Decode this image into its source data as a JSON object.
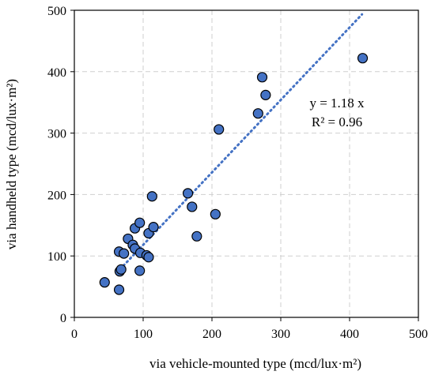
{
  "chart_data": {
    "type": "scatter",
    "xlabel": "via vehicle-mounted type (mcd/lux·m²)",
    "ylabel": "via handheld type (mcd/lux·m²)",
    "xlim": [
      0,
      500
    ],
    "ylim": [
      0,
      500
    ],
    "xticks": [
      0,
      100,
      200,
      300,
      400,
      500
    ],
    "yticks": [
      0,
      100,
      200,
      300,
      400,
      500
    ],
    "grid": true,
    "point_color": "#4472c4",
    "trend_color": "#4472c4",
    "trendline": {
      "slope": 1.18,
      "x_range": [
        62,
        418
      ],
      "equation": "y = 1.18 x",
      "r_squared": "R² = 0.96"
    },
    "points": [
      {
        "x": 44,
        "y": 57
      },
      {
        "x": 65,
        "y": 45
      },
      {
        "x": 66,
        "y": 75
      },
      {
        "x": 68,
        "y": 78
      },
      {
        "x": 65,
        "y": 107
      },
      {
        "x": 72,
        "y": 104
      },
      {
        "x": 78,
        "y": 128
      },
      {
        "x": 85,
        "y": 118
      },
      {
        "x": 88,
        "y": 112
      },
      {
        "x": 88,
        "y": 145
      },
      {
        "x": 95,
        "y": 154
      },
      {
        "x": 96,
        "y": 105
      },
      {
        "x": 95,
        "y": 76
      },
      {
        "x": 105,
        "y": 101
      },
      {
        "x": 108,
        "y": 98
      },
      {
        "x": 108,
        "y": 137
      },
      {
        "x": 115,
        "y": 147
      },
      {
        "x": 113,
        "y": 197
      },
      {
        "x": 165,
        "y": 202
      },
      {
        "x": 171,
        "y": 180
      },
      {
        "x": 178,
        "y": 132
      },
      {
        "x": 205,
        "y": 168
      },
      {
        "x": 210,
        "y": 306
      },
      {
        "x": 267,
        "y": 332
      },
      {
        "x": 273,
        "y": 391
      },
      {
        "x": 278,
        "y": 362
      },
      {
        "x": 419,
        "y": 422
      }
    ]
  }
}
